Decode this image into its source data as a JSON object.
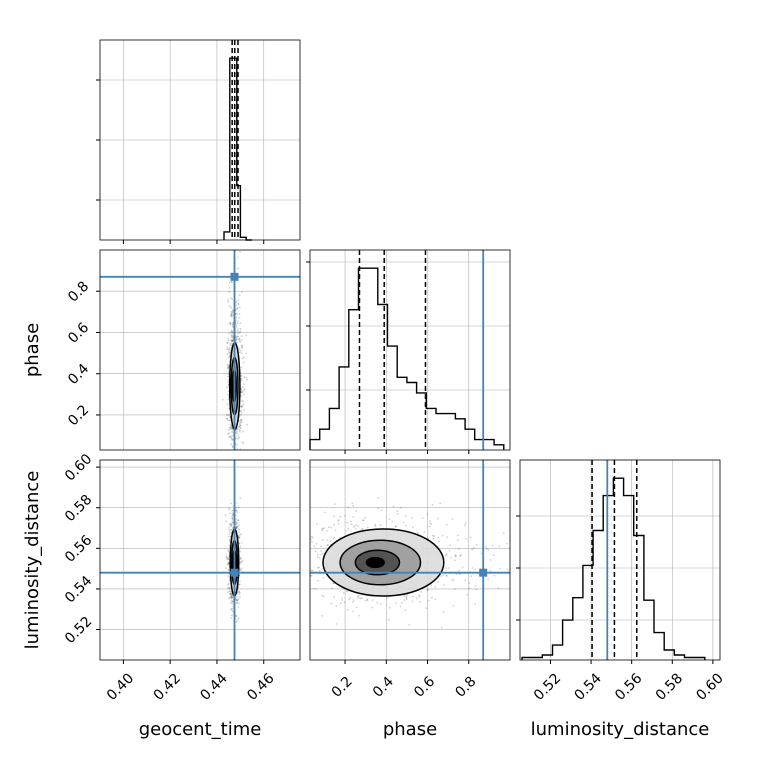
{
  "chart_data": {
    "type": "corner",
    "grid": true,
    "truth_color": "#4682b4",
    "parameters": [
      {
        "name": "geocent_time",
        "label": "geocent_time",
        "range": [
          0.39,
          0.4755
        ],
        "ticks": [
          0.4,
          0.42,
          0.44,
          0.46
        ],
        "tick_labels": [
          "0.40",
          "0.42",
          "0.44",
          "0.46"
        ],
        "truth": 0.4475,
        "quantiles": [
          0.4465,
          0.4476,
          0.449
        ]
      },
      {
        "name": "phase",
        "label": "phase",
        "range": [
          0.03,
          1.0
        ],
        "ticks": [
          0.2,
          0.4,
          0.6,
          0.8
        ],
        "tick_labels": [
          "0.2",
          "0.4",
          "0.6",
          "0.8"
        ],
        "truth": 0.87,
        "quantiles": [
          0.27,
          0.39,
          0.59
        ]
      },
      {
        "name": "luminosity_distance",
        "label": "luminosity_distance",
        "range": [
          0.505,
          0.6035
        ],
        "ticks": [
          0.52,
          0.54,
          0.56,
          0.58,
          0.6
        ],
        "tick_labels": [
          "0.52",
          "0.54",
          "0.56",
          "0.58",
          "0.60"
        ],
        "truth": 0.548,
        "quantiles": [
          0.5405,
          0.5515,
          0.5625
        ]
      }
    ],
    "histograms": [
      {
        "parameter": "geocent_time",
        "bins": [
          0.443,
          0.4455,
          0.447,
          0.4485,
          0.45,
          0.4525,
          0.455
        ],
        "counts": [
          3,
          67,
          67,
          20,
          1,
          0
        ]
      },
      {
        "parameter": "phase",
        "bins": [
          0.03,
          0.077,
          0.124,
          0.171,
          0.218,
          0.265,
          0.312,
          0.359,
          0.406,
          0.453,
          0.5,
          0.547,
          0.594,
          0.641,
          0.688,
          0.735,
          0.782,
          0.829,
          0.876,
          0.923,
          0.97
        ],
        "counts": [
          2,
          4,
          8,
          16,
          27,
          35,
          35,
          28,
          20,
          14,
          13,
          11,
          8,
          7,
          7,
          6,
          4,
          2,
          2,
          1
        ]
      },
      {
        "parameter": "luminosity_distance",
        "bins": [
          0.506,
          0.511,
          0.516,
          0.521,
          0.526,
          0.531,
          0.536,
          0.541,
          0.546,
          0.551,
          0.556,
          0.561,
          0.566,
          0.571,
          0.576,
          0.581,
          0.586,
          0.591,
          0.596
        ],
        "counts": [
          1,
          1,
          2,
          6,
          16,
          25,
          38,
          52,
          66,
          73,
          66,
          50,
          24,
          11,
          4,
          2,
          1,
          1
        ]
      }
    ],
    "scatter_panels": [
      {
        "x": "geocent_time",
        "y": "phase",
        "peak": [
          0.4473,
          0.34
        ],
        "spread": [
          0.0012,
          0.14
        ]
      },
      {
        "x": "geocent_time",
        "y": "luminosity_distance",
        "peak": [
          0.4475,
          0.553
        ],
        "spread": [
          0.0012,
          0.011
        ]
      },
      {
        "x": "phase",
        "y": "luminosity_distance",
        "peak": [
          0.34,
          0.553
        ],
        "spread": [
          0.16,
          0.011
        ]
      }
    ]
  }
}
